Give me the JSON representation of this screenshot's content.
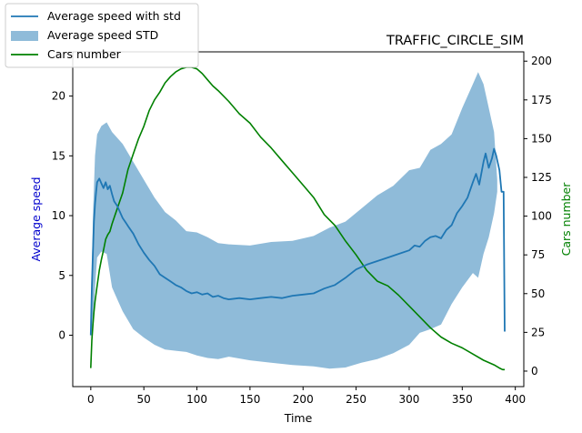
{
  "chart_data": {
    "type": "line",
    "title": "TRAFFIC_CIRCLE_SIM",
    "xlabel": "Time",
    "ylabel": "Average speed",
    "y2label": "Cars number",
    "xlim": [
      -17,
      408
    ],
    "ylim": [
      -4.3,
      23.7
    ],
    "y2lim": [
      -10,
      206
    ],
    "x_ticks": [
      0,
      50,
      100,
      150,
      200,
      250,
      300,
      350,
      400
    ],
    "y_ticks": [
      0,
      5,
      10,
      15,
      20
    ],
    "y2_ticks": [
      0,
      25,
      50,
      75,
      100,
      125,
      150,
      175,
      200
    ],
    "legend_position": "upper-left-outside",
    "colors": {
      "speed": "#1f77b4",
      "std_fill": "#1f77b4",
      "cars": "#008000",
      "ylabel": "#0000cd",
      "y2label": "#008000"
    },
    "series": [
      {
        "name": "Average speed with std",
        "axis": "left",
        "type": "line",
        "x": [
          0,
          1,
          2,
          3,
          4,
          5,
          6,
          8,
          10,
          12,
          14,
          16,
          18,
          20,
          22,
          25,
          28,
          30,
          33,
          36,
          40,
          45,
          50,
          55,
          60,
          65,
          70,
          75,
          80,
          85,
          90,
          95,
          100,
          105,
          110,
          115,
          120,
          125,
          130,
          140,
          150,
          160,
          170,
          180,
          190,
          200,
          210,
          220,
          230,
          240,
          250,
          260,
          270,
          280,
          290,
          300,
          305,
          310,
          315,
          320,
          325,
          330,
          335,
          340,
          345,
          350,
          355,
          360,
          363,
          366,
          370,
          372,
          375,
          378,
          380,
          382,
          385,
          387,
          388,
          389,
          390
        ],
        "y": [
          0,
          4,
          7,
          9.5,
          11,
          12,
          12.8,
          13.1,
          12.7,
          12.3,
          12.8,
          12.2,
          12.5,
          11.8,
          11.2,
          10.8,
          10.2,
          9.8,
          9.4,
          9.0,
          8.5,
          7.6,
          6.9,
          6.3,
          5.8,
          5.1,
          4.8,
          4.5,
          4.2,
          4.0,
          3.7,
          3.5,
          3.6,
          3.4,
          3.5,
          3.2,
          3.3,
          3.1,
          3.0,
          3.1,
          3.0,
          3.1,
          3.2,
          3.1,
          3.3,
          3.4,
          3.5,
          3.9,
          4.2,
          4.8,
          5.5,
          5.9,
          6.2,
          6.5,
          6.8,
          7.1,
          7.5,
          7.4,
          7.9,
          8.2,
          8.3,
          8.1,
          8.8,
          9.2,
          10.2,
          10.8,
          11.5,
          12.8,
          13.5,
          12.6,
          14.5,
          15.2,
          14.0,
          14.8,
          15.6,
          15.0,
          13.8,
          12.0,
          12.0,
          12.0,
          0.3
        ]
      },
      {
        "name": "Average speed STD",
        "axis": "left",
        "type": "area-band",
        "x": [
          0,
          2,
          4,
          6,
          10,
          15,
          20,
          25,
          30,
          40,
          50,
          60,
          70,
          80,
          90,
          100,
          110,
          120,
          130,
          150,
          170,
          190,
          210,
          225,
          240,
          255,
          270,
          285,
          300,
          310,
          320,
          330,
          340,
          350,
          360,
          365,
          370,
          375,
          380,
          383
        ],
        "upper": [
          0.5,
          10,
          15,
          16.8,
          17.5,
          17.8,
          17.0,
          16.5,
          16.0,
          14.5,
          13.0,
          11.5,
          10.3,
          9.6,
          8.7,
          8.6,
          8.2,
          7.7,
          7.6,
          7.5,
          7.8,
          7.9,
          8.3,
          9.0,
          9.5,
          10.6,
          11.7,
          12.5,
          13.8,
          14.0,
          15.5,
          16.0,
          16.8,
          19.0,
          21.0,
          22.0,
          21.0,
          19.0,
          17.0,
          13.0
        ],
        "lower": [
          -0.3,
          1.0,
          4.0,
          6.5,
          7.0,
          6.8,
          4.0,
          3.0,
          2.0,
          0.5,
          -0.2,
          -0.8,
          -1.2,
          -1.3,
          -1.4,
          -1.7,
          -1.9,
          -2.0,
          -1.8,
          -2.1,
          -2.3,
          -2.5,
          -2.6,
          -2.8,
          -2.7,
          -2.3,
          -2.0,
          -1.5,
          -0.8,
          0.2,
          0.5,
          0.9,
          2.6,
          4.0,
          5.2,
          4.8,
          6.8,
          8.2,
          10.2,
          12.0
        ]
      },
      {
        "name": "Cars number",
        "axis": "right",
        "type": "line",
        "x": [
          0,
          1,
          2,
          3,
          4,
          6,
          8,
          10,
          12,
          14,
          16,
          18,
          20,
          25,
          30,
          35,
          40,
          45,
          50,
          55,
          60,
          65,
          70,
          75,
          80,
          85,
          90,
          95,
          100,
          105,
          110,
          115,
          120,
          130,
          140,
          150,
          160,
          170,
          180,
          190,
          200,
          210,
          220,
          230,
          240,
          250,
          260,
          270,
          280,
          290,
          300,
          310,
          320,
          330,
          340,
          350,
          360,
          370,
          380,
          385,
          388,
          390
        ],
        "y": [
          2,
          20,
          30,
          38,
          45,
          55,
          65,
          72,
          78,
          85,
          88,
          90,
          95,
          105,
          115,
          130,
          140,
          150,
          158,
          168,
          175,
          180,
          186,
          190,
          193,
          195,
          196,
          196,
          195,
          192,
          188,
          184,
          181,
          174,
          166,
          160,
          151,
          144,
          136,
          128,
          120,
          112,
          101,
          94,
          84,
          75,
          65,
          58,
          55,
          49,
          42,
          35,
          28,
          22,
          18,
          15,
          11,
          7,
          4,
          2,
          1,
          1
        ]
      }
    ]
  }
}
